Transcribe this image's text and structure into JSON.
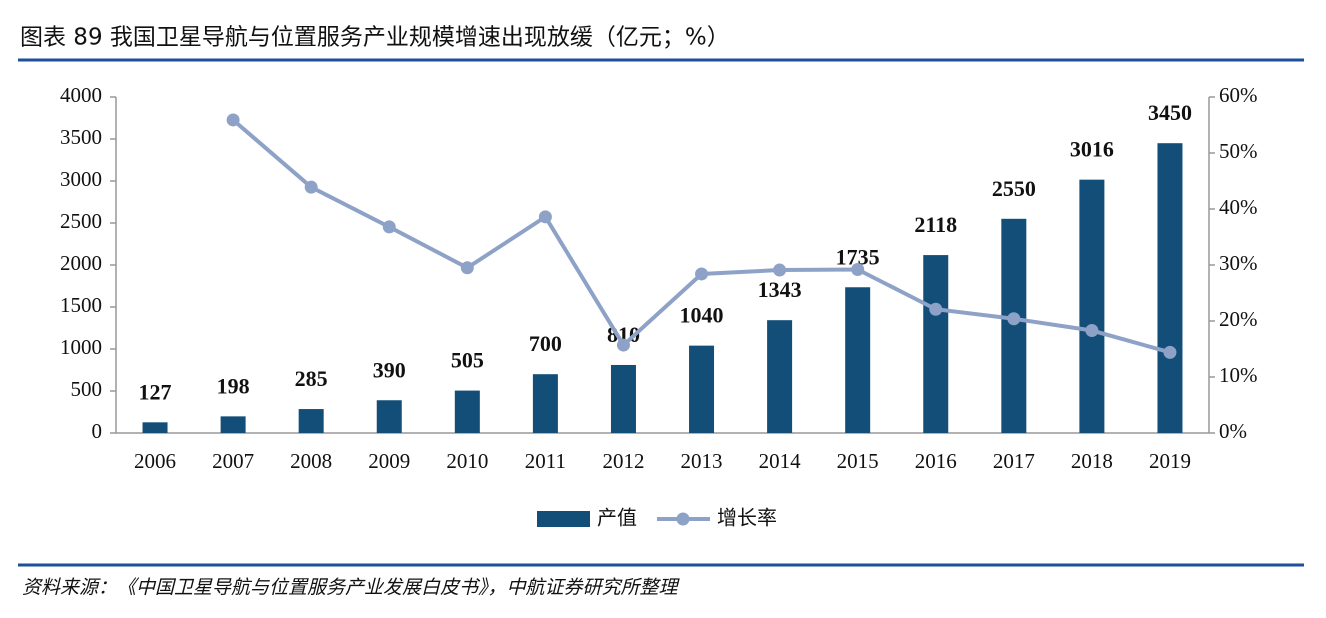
{
  "chart_data": {
    "type": "combo",
    "title": "图表 89 我国卫星导航与位置服务产业规模增速出现放缓（亿元；%）",
    "source": "资料来源：《中国卫星导航与位置服务产业发展白皮书》，中航证券研究所整理",
    "categories": [
      "2006",
      "2007",
      "2008",
      "2009",
      "2010",
      "2011",
      "2012",
      "2013",
      "2014",
      "2015",
      "2016",
      "2017",
      "2018",
      "2019"
    ],
    "series": [
      {
        "name": "产值",
        "type": "bar",
        "color": "#124e78",
        "values": [
          127,
          198,
          285,
          390,
          505,
          700,
          810,
          1040,
          1343,
          1735,
          2118,
          2550,
          3016,
          3450
        ]
      },
      {
        "name": "增长率",
        "type": "line",
        "axis": "y2",
        "color": "#8ea2c8",
        "values": [
          null,
          55.9,
          43.9,
          36.8,
          29.5,
          38.6,
          15.7,
          28.4,
          29.1,
          29.2,
          22.1,
          20.4,
          18.3,
          14.4
        ]
      }
    ],
    "ylim": [
      0,
      4000
    ],
    "yticks": [
      0,
      500,
      1000,
      1500,
      2000,
      2500,
      3000,
      3500,
      4000
    ],
    "y2lim": [
      0,
      60
    ],
    "y2ticks": [
      {
        "value": 0,
        "label": "0%"
      },
      {
        "value": 10,
        "label": "10%"
      },
      {
        "value": 20,
        "label": "20%"
      },
      {
        "value": 30,
        "label": "30%"
      },
      {
        "value": 40,
        "label": "40%"
      },
      {
        "value": 50,
        "label": "50%"
      },
      {
        "value": 60,
        "label": "60%"
      }
    ],
    "legend": "bottom"
  }
}
